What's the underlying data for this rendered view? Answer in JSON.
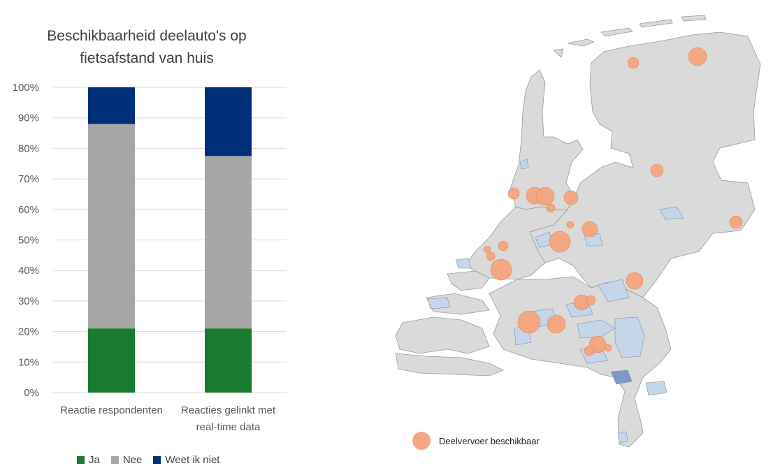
{
  "chart_data": {
    "type": "bar",
    "stacked": true,
    "title_lines": [
      "Beschikbaarheid deelauto's op",
      "fietsafstand van huis"
    ],
    "categories": [
      "Reactie respondenten",
      "Reacties gelinkt met\nreal-time data"
    ],
    "category_labels": [
      [
        "Reactie respondenten"
      ],
      [
        "Reacties gelinkt met",
        "real-time data"
      ]
    ],
    "series": [
      {
        "name": "Ja",
        "values": [
          21,
          21
        ],
        "color": "#1a7a2e"
      },
      {
        "name": "Nee",
        "values": [
          67,
          56.5
        ],
        "color": "#a6a6a6"
      },
      {
        "name": "Weet ik niet",
        "values": [
          12,
          22.5
        ],
        "color": "#002f7a"
      }
    ],
    "ylim": [
      0,
      100
    ],
    "yticks": [
      "0%",
      "10%",
      "20%",
      "30%",
      "40%",
      "50%",
      "60%",
      "70%",
      "80%",
      "90%",
      "100%"
    ],
    "xlabel": "",
    "ylabel": ""
  },
  "map": {
    "legend_label": "Deelvervoer beschikbaar",
    "marker_color": "#f4a379",
    "land_color": "#dadada",
    "highlight_color": "#c5d5ea"
  }
}
